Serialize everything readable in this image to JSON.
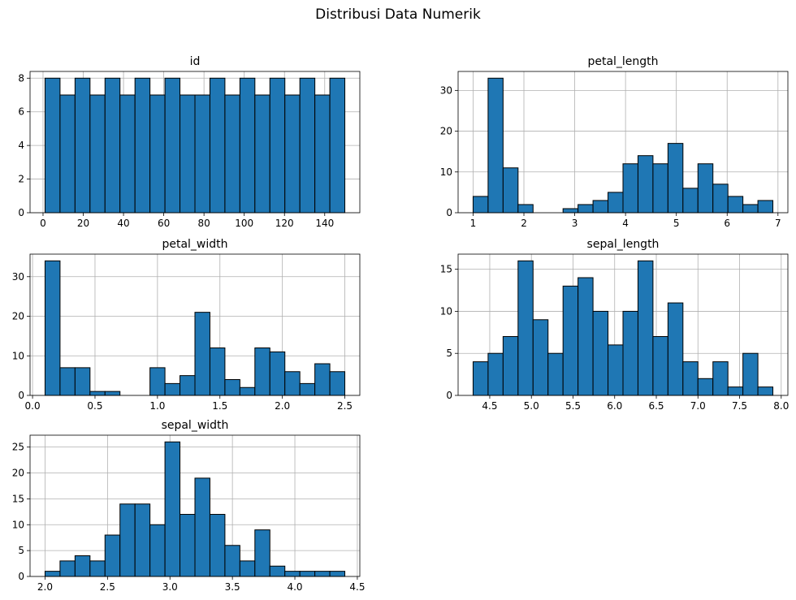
{
  "title": "Distribusi Data Numerik",
  "chart_data": [
    {
      "type": "histogram",
      "title": "id",
      "color": "#1f77b4",
      "edgecolor": "#000000",
      "grid": true,
      "bins": [
        1,
        8.45,
        15.9,
        23.35,
        30.8,
        38.25,
        45.7,
        53.15,
        60.6,
        68.05,
        75.5,
        82.95,
        90.4,
        97.85,
        105.3,
        112.75,
        120.2,
        127.65,
        135.1,
        142.55,
        150
      ],
      "values": [
        8,
        7,
        8,
        7,
        8,
        7,
        8,
        7,
        8,
        7,
        7,
        8,
        7,
        8,
        7,
        8,
        7,
        8,
        7,
        8
      ],
      "xlim": [
        -6.45,
        157.45
      ],
      "xticks": [
        0,
        20,
        40,
        60,
        80,
        100,
        120,
        140
      ],
      "ylim": [
        0,
        8.4
      ],
      "yticks": [
        0,
        2,
        4,
        6,
        8
      ]
    },
    {
      "type": "histogram",
      "title": "petal_length",
      "color": "#1f77b4",
      "edgecolor": "#000000",
      "grid": true,
      "bins": [
        1,
        1.295,
        1.59,
        1.885,
        2.18,
        2.475,
        2.77,
        3.065,
        3.36,
        3.655,
        3.95,
        4.245,
        4.54,
        4.835,
        5.13,
        5.425,
        5.72,
        6.015,
        6.31,
        6.605,
        6.9
      ],
      "values": [
        4,
        33,
        11,
        2,
        0,
        0,
        1,
        2,
        3,
        5,
        12,
        14,
        12,
        17,
        6,
        12,
        7,
        4,
        2,
        3
      ],
      "xlim": [
        0.705,
        7.195
      ],
      "xticks": [
        1,
        2,
        3,
        4,
        5,
        6,
        7
      ],
      "ylim": [
        0,
        34.65
      ],
      "yticks": [
        0,
        10,
        20,
        30
      ]
    },
    {
      "type": "histogram",
      "title": "petal_width",
      "color": "#1f77b4",
      "edgecolor": "#000000",
      "grid": true,
      "bins": [
        0.1,
        0.22,
        0.34,
        0.46,
        0.58,
        0.7,
        0.82,
        0.94,
        1.06,
        1.18,
        1.3,
        1.42,
        1.54,
        1.66,
        1.78,
        1.9,
        2.02,
        2.14,
        2.26,
        2.38,
        2.5
      ],
      "values": [
        34,
        7,
        7,
        1,
        1,
        0,
        0,
        7,
        3,
        5,
        21,
        12,
        4,
        2,
        12,
        11,
        6,
        3,
        8,
        6
      ],
      "xlim": [
        -0.02,
        2.62
      ],
      "xticks": [
        {
          "value": 0,
          "label": "0.0"
        },
        0.5,
        {
          "value": 1,
          "label": "1.0"
        },
        1.5,
        {
          "value": 2,
          "label": "2.0"
        },
        2.5
      ],
      "ylim": [
        0,
        35.7
      ],
      "yticks": [
        0,
        10,
        20,
        30
      ]
    },
    {
      "type": "histogram",
      "title": "sepal_length",
      "color": "#1f77b4",
      "edgecolor": "#000000",
      "grid": true,
      "bins": [
        4.3,
        4.48,
        4.66,
        4.84,
        5.02,
        5.2,
        5.38,
        5.56,
        5.74,
        5.92,
        6.1,
        6.28,
        6.46,
        6.64,
        6.82,
        7,
        7.18,
        7.36,
        7.54,
        7.72,
        7.9
      ],
      "values": [
        4,
        5,
        7,
        16,
        9,
        5,
        13,
        14,
        10,
        6,
        10,
        16,
        7,
        11,
        4,
        2,
        4,
        1,
        5,
        1
      ],
      "xlim": [
        4.12,
        8.08
      ],
      "xticks": [
        4.5,
        {
          "value": 5,
          "label": "5.0"
        },
        5.5,
        {
          "value": 6,
          "label": "6.0"
        },
        6.5,
        {
          "value": 7,
          "label": "7.0"
        },
        7.5,
        {
          "value": 8,
          "label": "8.0"
        }
      ],
      "ylim": [
        0,
        16.8
      ],
      "yticks": [
        0,
        5,
        10,
        15
      ]
    },
    {
      "type": "histogram",
      "title": "sepal_width",
      "color": "#1f77b4",
      "edgecolor": "#000000",
      "grid": true,
      "bins": [
        2,
        2.12,
        2.24,
        2.36,
        2.48,
        2.6,
        2.72,
        2.84,
        2.96,
        3.08,
        3.2,
        3.32,
        3.44,
        3.56,
        3.68,
        3.8,
        3.92,
        4.04,
        4.16,
        4.28,
        4.4
      ],
      "values": [
        1,
        3,
        4,
        3,
        8,
        14,
        14,
        10,
        26,
        12,
        19,
        12,
        6,
        3,
        9,
        2,
        1,
        1,
        1,
        1
      ],
      "xlim": [
        1.88,
        4.52
      ],
      "xticks": [
        {
          "value": 2,
          "label": "2.0"
        },
        2.5,
        {
          "value": 3,
          "label": "3.0"
        },
        3.5,
        {
          "value": 4,
          "label": "4.0"
        },
        4.5
      ],
      "ylim": [
        0,
        27.3
      ],
      "yticks": [
        0,
        5,
        10,
        15,
        20,
        25
      ]
    }
  ]
}
